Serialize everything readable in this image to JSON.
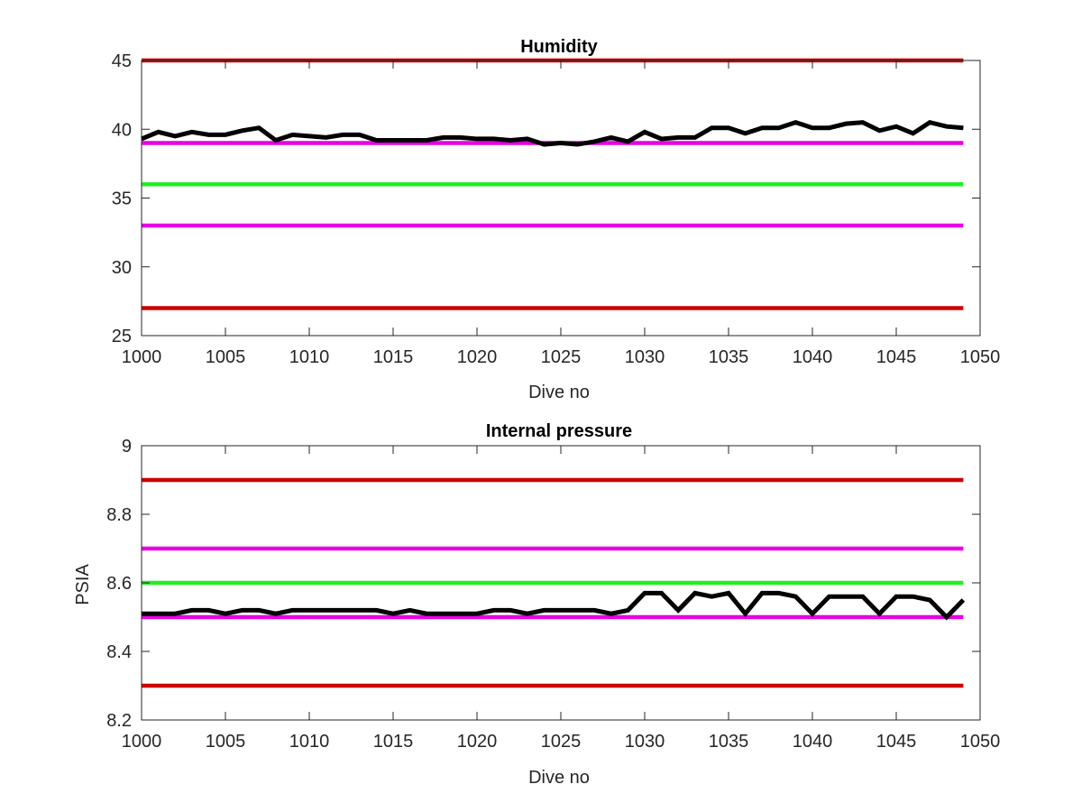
{
  "chart_data": [
    {
      "type": "line",
      "title": "Humidity",
      "xlabel": "Dive no",
      "ylabel": "",
      "xlim": [
        1000,
        1050
      ],
      "ylim": [
        25,
        45
      ],
      "xticks": [
        1000,
        1005,
        1010,
        1015,
        1020,
        1025,
        1030,
        1035,
        1040,
        1045,
        1050
      ],
      "yticks": [
        25,
        30,
        35,
        40,
        45
      ],
      "grid": false,
      "series": [
        {
          "color": "#000000",
          "x": [
            1000,
            1001,
            1002,
            1003,
            1004,
            1005,
            1006,
            1007,
            1008,
            1009,
            1010,
            1011,
            1012,
            1013,
            1014,
            1015,
            1016,
            1017,
            1018,
            1019,
            1020,
            1021,
            1022,
            1023,
            1024,
            1025,
            1026,
            1027,
            1028,
            1029,
            1030,
            1031,
            1032,
            1033,
            1034,
            1035,
            1036,
            1037,
            1038,
            1039,
            1040,
            1041,
            1042,
            1043,
            1044,
            1045,
            1046,
            1047,
            1048,
            1049
          ],
          "y": [
            39.3,
            39.8,
            39.5,
            39.8,
            39.6,
            39.6,
            39.9,
            40.1,
            39.2,
            39.6,
            39.5,
            39.4,
            39.6,
            39.6,
            39.2,
            39.2,
            39.2,
            39.2,
            39.4,
            39.4,
            39.3,
            39.3,
            39.2,
            39.3,
            38.9,
            39.0,
            38.9,
            39.1,
            39.4,
            39.1,
            39.8,
            39.3,
            39.4,
            39.4,
            40.1,
            40.1,
            39.7,
            40.1,
            40.1,
            40.5,
            40.1,
            40.1,
            40.4,
            40.5,
            39.9,
            40.2,
            39.7,
            40.5,
            40.2,
            40.1
          ]
        },
        {
          "color": "#cc0000",
          "x": [
            1000,
            1049
          ],
          "y": [
            45,
            45
          ]
        },
        {
          "color": "#e600e6",
          "x": [
            1000,
            1049
          ],
          "y": [
            39,
            39
          ]
        },
        {
          "color": "#22ee22",
          "x": [
            1000,
            1049
          ],
          "y": [
            36,
            36
          ]
        },
        {
          "color": "#e600e6",
          "x": [
            1000,
            1049
          ],
          "y": [
            33,
            33
          ]
        },
        {
          "color": "#cc0000",
          "x": [
            1000,
            1049
          ],
          "y": [
            27,
            27
          ]
        }
      ]
    },
    {
      "type": "line",
      "title": "Internal pressure",
      "xlabel": "Dive no",
      "ylabel": "PSIA",
      "xlim": [
        1000,
        1050
      ],
      "ylim": [
        8.2,
        9
      ],
      "xticks": [
        1000,
        1005,
        1010,
        1015,
        1020,
        1025,
        1030,
        1035,
        1040,
        1045,
        1050
      ],
      "yticks": [
        8.2,
        8.4,
        8.6,
        8.8,
        9
      ],
      "grid": false,
      "series": [
        {
          "color": "#000000",
          "x": [
            1000,
            1001,
            1002,
            1003,
            1004,
            1005,
            1006,
            1007,
            1008,
            1009,
            1010,
            1011,
            1012,
            1013,
            1014,
            1015,
            1016,
            1017,
            1018,
            1019,
            1020,
            1021,
            1022,
            1023,
            1024,
            1025,
            1026,
            1027,
            1028,
            1029,
            1030,
            1031,
            1032,
            1033,
            1034,
            1035,
            1036,
            1037,
            1038,
            1039,
            1040,
            1041,
            1042,
            1043,
            1044,
            1045,
            1046,
            1047,
            1048,
            1049
          ],
          "y": [
            8.51,
            8.51,
            8.51,
            8.52,
            8.52,
            8.51,
            8.52,
            8.52,
            8.51,
            8.52,
            8.52,
            8.52,
            8.52,
            8.52,
            8.52,
            8.51,
            8.52,
            8.51,
            8.51,
            8.51,
            8.51,
            8.52,
            8.52,
            8.51,
            8.52,
            8.52,
            8.52,
            8.52,
            8.51,
            8.52,
            8.57,
            8.57,
            8.52,
            8.57,
            8.56,
            8.57,
            8.51,
            8.57,
            8.57,
            8.56,
            8.51,
            8.56,
            8.56,
            8.56,
            8.51,
            8.56,
            8.56,
            8.55,
            8.5,
            8.55
          ]
        },
        {
          "color": "#cc0000",
          "x": [
            1000,
            1049
          ],
          "y": [
            8.9,
            8.9
          ]
        },
        {
          "color": "#e600e6",
          "x": [
            1000,
            1049
          ],
          "y": [
            8.7,
            8.7
          ]
        },
        {
          "color": "#22ee22",
          "x": [
            1000,
            1049
          ],
          "y": [
            8.6,
            8.6
          ]
        },
        {
          "color": "#e600e6",
          "x": [
            1000,
            1049
          ],
          "y": [
            8.5,
            8.5
          ]
        },
        {
          "color": "#cc0000",
          "x": [
            1000,
            1049
          ],
          "y": [
            8.3,
            8.3
          ]
        }
      ]
    }
  ]
}
